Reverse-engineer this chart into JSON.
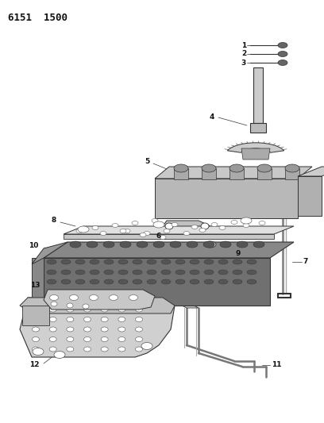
{
  "title": "6151  1500",
  "background_color": "#ffffff",
  "lc": "#333333",
  "label_color": "#111111",
  "figsize": [
    4.08,
    5.33
  ],
  "dpi": 100,
  "gray_light": "#d8d8d8",
  "gray_mid": "#b0b0b0",
  "gray_dark": "#808080",
  "gray_body": "#999999"
}
